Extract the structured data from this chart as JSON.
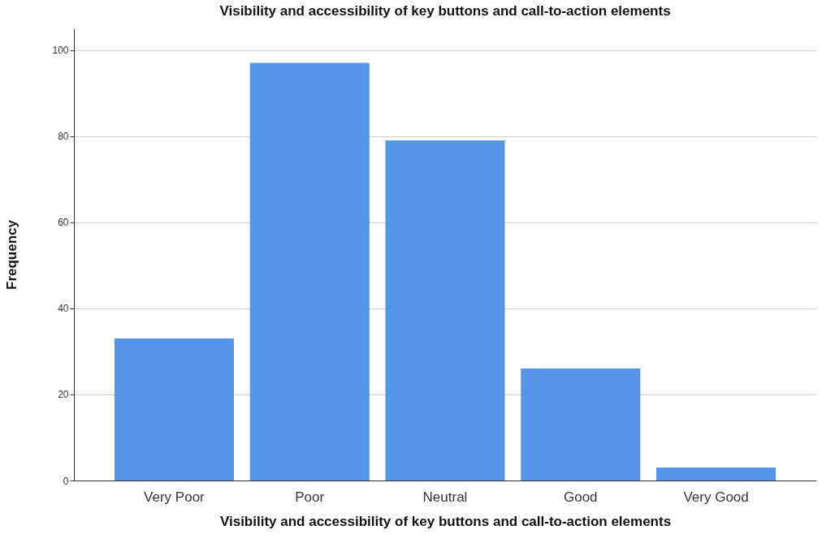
{
  "chart_data": {
    "type": "bar",
    "title": "Visibility and accessibility of key buttons and call-to-action elements",
    "xlabel": "Visibility and accessibility of key buttons and call-to-action elements",
    "ylabel": "Frequency",
    "categories": [
      "Very Poor",
      "Poor",
      "Neutral",
      "Good",
      "Very Good"
    ],
    "values": [
      33,
      97,
      79,
      26,
      3
    ],
    "color": "#5596e6",
    "ylim": [
      0,
      105
    ],
    "yticks": [
      0,
      20,
      40,
      60,
      80,
      100
    ],
    "grid": "y"
  }
}
